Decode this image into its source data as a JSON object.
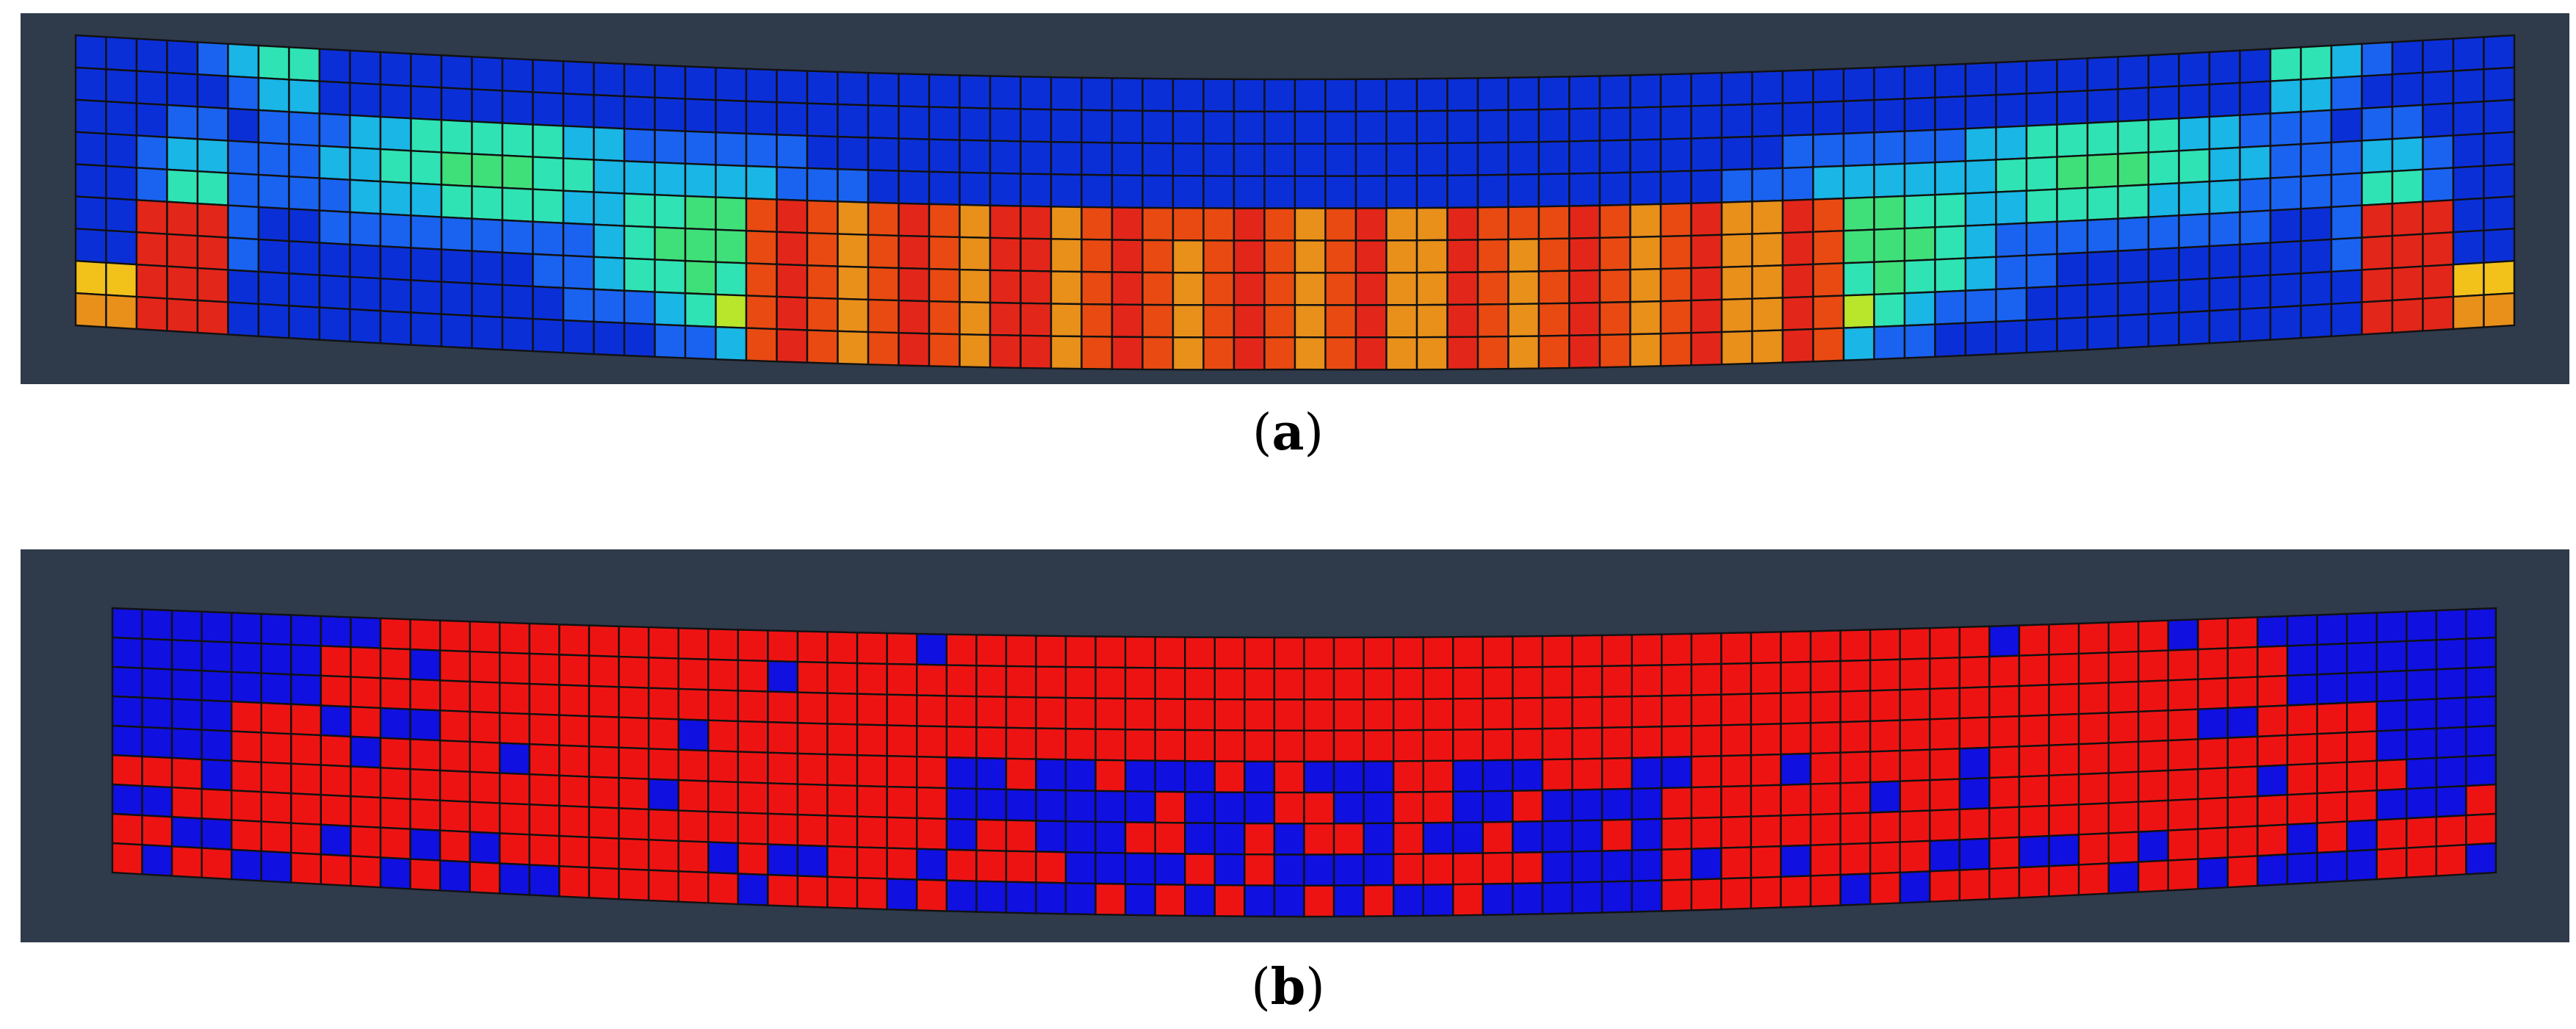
{
  "panels": [
    {
      "id": "a",
      "caption": "a",
      "background": "#2f3a4b",
      "mesh_columns": 80,
      "mesh_rows": 9,
      "palette": [
        "#0b2fd6",
        "#1a63f0",
        "#19b6e6",
        "#2fe3b4",
        "#3fe07a",
        "#b9e52b",
        "#f2c21b",
        "#e8901a",
        "#e84a12",
        "#e3261a"
      ]
    },
    {
      "id": "b",
      "caption": "b",
      "background": "#2f3a4b",
      "mesh_columns": 80,
      "mesh_rows": 9,
      "palette": [
        "#1010e0",
        "#ee1313"
      ]
    }
  ]
}
